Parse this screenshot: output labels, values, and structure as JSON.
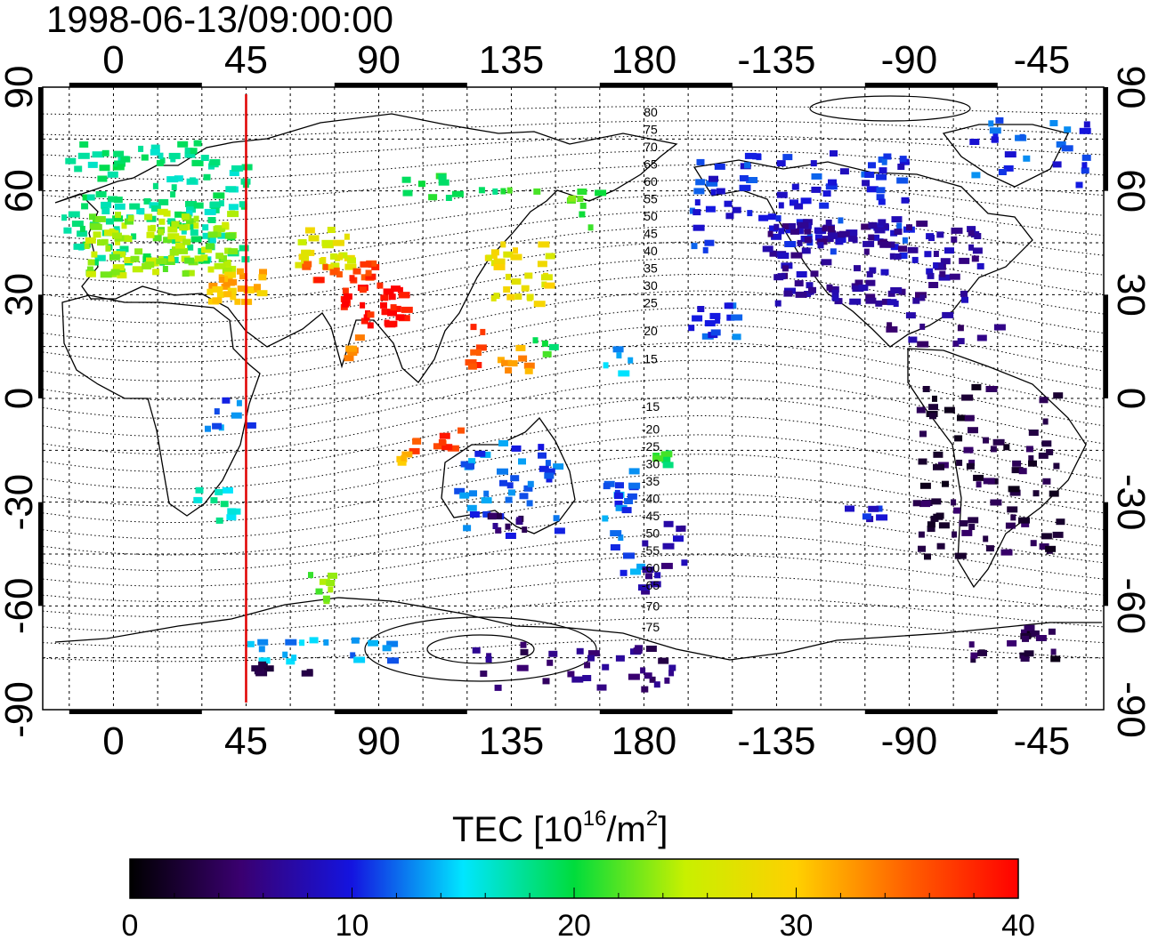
{
  "title": "1998-06-13/09:00:00",
  "map": {
    "x_ticks": [
      "0",
      "45",
      "90",
      "135",
      "180",
      "-135",
      "-90",
      "-45"
    ],
    "y_ticks": [
      "90",
      "60",
      "30",
      "0",
      "-30",
      "-60",
      "-90"
    ],
    "x_range": [
      -24,
      336
    ],
    "y_range": [
      -90,
      90
    ],
    "grid_step_deg": 15,
    "terminator_longitude": 45,
    "terminator_color": "#e00000",
    "contour_labels_north": [
      "80",
      "75",
      "70",
      "65",
      "60",
      "55",
      "50",
      "45",
      "40",
      "35",
      "30",
      "25",
      "20",
      "15"
    ],
    "contour_labels_south": [
      "-15",
      "-20",
      "-25",
      "-30",
      "-35",
      "-40",
      "-45",
      "-50",
      "-55",
      "-60",
      "-65",
      "-70",
      "-75"
    ]
  },
  "colorbar": {
    "title_prefix": "TEC  [10",
    "title_sup1": "16",
    "title_mid": "/m",
    "title_sup2": "2",
    "title_suffix": "]",
    "ticks": [
      "0",
      "10",
      "20",
      "30",
      "40"
    ],
    "range": [
      0,
      40
    ],
    "stops": [
      "#000000",
      "#3a0070",
      "#1414e0",
      "#00e6ff",
      "#00dc3c",
      "#c8f000",
      "#ffd000",
      "#ff6000",
      "#ff0000"
    ]
  },
  "chart_data": {
    "type": "heatmap",
    "title": "1998-06-13/09:00:00",
    "xlabel": "",
    "ylabel": "",
    "xlim": [
      -24,
      336
    ],
    "ylim": [
      -90,
      90
    ],
    "value_label": "TEC [10^16/m^2]",
    "value_range": [
      0,
      40
    ],
    "regions": [
      {
        "lon": [
          -18,
          45
        ],
        "lat": [
          40,
          75
        ],
        "tec": 18,
        "n": 140
      },
      {
        "lon": [
          -10,
          40
        ],
        "lat": [
          36,
          55
        ],
        "tec": 24,
        "n": 110
      },
      {
        "lon": [
          30,
          50
        ],
        "lat": [
          28,
          38
        ],
        "tec": 31,
        "n": 30
      },
      {
        "lon": [
          60,
          80
        ],
        "lat": [
          38,
          50
        ],
        "tec": 27,
        "n": 25
      },
      {
        "lon": [
          63,
          90
        ],
        "lat": [
          35,
          40
        ],
        "tec": 37,
        "n": 20
      },
      {
        "lon": [
          75,
          98
        ],
        "lat": [
          22,
          34
        ],
        "tec": 39,
        "n": 35
      },
      {
        "lon": [
          75,
          82
        ],
        "lat": [
          12,
          20
        ],
        "tec": 33,
        "n": 6
      },
      {
        "lon": [
          88,
          145
        ],
        "lat": [
          58,
          66
        ],
        "tec": 20,
        "n": 14
      },
      {
        "lon": [
          125,
          148
        ],
        "lat": [
          28,
          46
        ],
        "tec": 28,
        "n": 30
      },
      {
        "lon": [
          118,
          125
        ],
        "lat": [
          10,
          22
        ],
        "tec": 37,
        "n": 8
      },
      {
        "lon": [
          130,
          140
        ],
        "lat": [
          8,
          16
        ],
        "tec": 32,
        "n": 8
      },
      {
        "lon": [
          140,
          148
        ],
        "lat": [
          12,
          18
        ],
        "tec": 20,
        "n": 4
      },
      {
        "lon": [
          165,
          175
        ],
        "lat": [
          8,
          16
        ],
        "tec": 14,
        "n": 5
      },
      {
        "lon": [
          150,
          165
        ],
        "lat": [
          50,
          62
        ],
        "tec": 22,
        "n": 8
      },
      {
        "lon": [
          100,
          118
        ],
        "lat": [
          -15,
          -8
        ],
        "tec": 37,
        "n": 10
      },
      {
        "lon": [
          95,
          100
        ],
        "lat": [
          -20,
          -15
        ],
        "tec": 30,
        "n": 4
      },
      {
        "lon": [
          115,
          150
        ],
        "lat": [
          -40,
          -12
        ],
        "tec": 12,
        "n": 40
      },
      {
        "lon": [
          125,
          140
        ],
        "lat": [
          -38,
          -30
        ],
        "tec": 5,
        "n": 10
      },
      {
        "lon": [
          165,
          178
        ],
        "lat": [
          -50,
          -20
        ],
        "tec": 12,
        "n": 22
      },
      {
        "lon": [
          178,
          195
        ],
        "lat": [
          -55,
          -35
        ],
        "tec": 7,
        "n": 14
      },
      {
        "lon": [
          182,
          190
        ],
        "lat": [
          -20,
          -15
        ],
        "tec": 20,
        "n": 6
      },
      {
        "lon": [
          25,
          40
        ],
        "lat": [
          -35,
          -25
        ],
        "tec": 17,
        "n": 10
      },
      {
        "lon": [
          30,
          45
        ],
        "lat": [
          -8,
          2
        ],
        "tec": 12,
        "n": 8
      },
      {
        "lon": [
          65,
          73
        ],
        "lat": [
          -58,
          -50
        ],
        "tec": 23,
        "n": 8
      },
      {
        "lon": [
          45,
          95
        ],
        "lat": [
          -76,
          -68
        ],
        "tec": 13,
        "n": 18
      },
      {
        "lon": [
          45,
          70
        ],
        "lat": [
          -80,
          -76
        ],
        "tec": 3,
        "n": 8
      },
      {
        "lon": [
          120,
          190
        ],
        "lat": [
          -84,
          -70
        ],
        "tec": 5,
        "n": 35
      },
      {
        "lon": [
          195,
          270
        ],
        "lat": [
          42,
          72
        ],
        "tec": 10,
        "n": 90
      },
      {
        "lon": [
          220,
          295
        ],
        "lat": [
          28,
          52
        ],
        "tec": 7,
        "n": 130
      },
      {
        "lon": [
          195,
          210
        ],
        "lat": [
          18,
          30
        ],
        "tec": 11,
        "n": 14
      },
      {
        "lon": [
          260,
          300
        ],
        "lat": [
          15,
          25
        ],
        "tec": 6,
        "n": 12
      },
      {
        "lon": [
          270,
          320
        ],
        "lat": [
          -45,
          5
        ],
        "tec": 3,
        "n": 90
      },
      {
        "lon": [
          245,
          260
        ],
        "lat": [
          -35,
          -30
        ],
        "tec": 9,
        "n": 6
      },
      {
        "lon": [
          290,
          320
        ],
        "lat": [
          -75,
          -65
        ],
        "tec": 3,
        "n": 20
      },
      {
        "lon": [
          290,
          336
        ],
        "lat": [
          62,
          82
        ],
        "tec": 11,
        "n": 25
      }
    ]
  }
}
